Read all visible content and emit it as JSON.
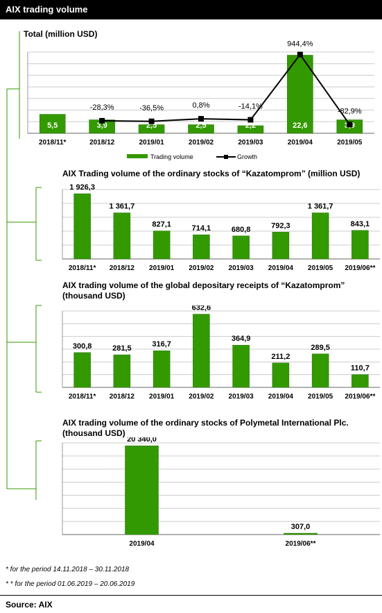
{
  "header": {
    "title": "AIX trading volume"
  },
  "colors": {
    "bar": "#339900",
    "bar_dark": "#1f6e00",
    "grid": "#cccccc",
    "bracket": "#339900"
  },
  "chart_data": [
    {
      "type": "bar",
      "title": "Total (million USD)",
      "categories": [
        "2018/11*",
        "2018/12",
        "2019/01",
        "2019/02",
        "2019/03",
        "2019/04",
        "2019/05"
      ],
      "series": [
        {
          "name": "Trading volume",
          "values": [
            5.5,
            3.9,
            2.5,
            2.5,
            2.2,
            22.6,
            3.9
          ],
          "labels": [
            "5,5",
            "3,9",
            "2,5",
            "2,5",
            "2,2",
            "22,6",
            "3,9"
          ]
        },
        {
          "name": "Growth",
          "type": "line",
          "values": [
            null,
            -28.3,
            -36.5,
            0.8,
            -14.1,
            944.4,
            -82.9
          ],
          "labels": [
            "",
            "-28,3%",
            "-36,5%",
            "0,8%",
            "-14,1%",
            "944,4%",
            "-82,9%"
          ]
        }
      ],
      "legend": [
        "Trading volume",
        "Growth"
      ],
      "legend_position": "bottom"
    },
    {
      "type": "bar",
      "title": "AIX Trading volume of the ordinary stocks of “Kazatomprom” (million USD)",
      "categories": [
        "2018/11*",
        "2018/12",
        "2019/01",
        "2019/02",
        "2019/03",
        "2019/04",
        "2019/05",
        "2019/06**"
      ],
      "values": [
        1926.3,
        1361.7,
        827.1,
        714.1,
        680.8,
        792.3,
        1361.7,
        843.1
      ],
      "labels": [
        "1 926,3",
        "1 361,7",
        "827,1",
        "714,1",
        "680,8",
        "792,3",
        "1 361,7",
        "843,1"
      ]
    },
    {
      "type": "bar",
      "title": "AIX trading volume of the global depositary receipts of “Kazatomprom” (thousand USD)",
      "categories": [
        "2018/11*",
        "2018/12",
        "2019/01",
        "2019/02",
        "2019/03",
        "2019/04",
        "2019/05",
        "2019/06**"
      ],
      "values": [
        300.8,
        281.5,
        316.7,
        632.6,
        364.9,
        211.2,
        289.5,
        110.7
      ],
      "labels": [
        "300,8",
        "281,5",
        "316,7",
        "632,6",
        "364,9",
        "211,2",
        "289,5",
        "110,7"
      ]
    },
    {
      "type": "bar",
      "title": "AIX trading volume of the ordinary stocks of Polymetal International Plc. (thousand USD)",
      "categories": [
        "2019/04",
        "2019/06**"
      ],
      "values": [
        20340.0,
        307.0
      ],
      "labels": [
        "20 340,0",
        "307,0"
      ]
    }
  ],
  "footnotes": [
    "* for the period 14.11.2018 – 30.11.2018",
    "* * for the period 01.06.2019 – 20.06.2019"
  ],
  "source": "Source: AIX"
}
